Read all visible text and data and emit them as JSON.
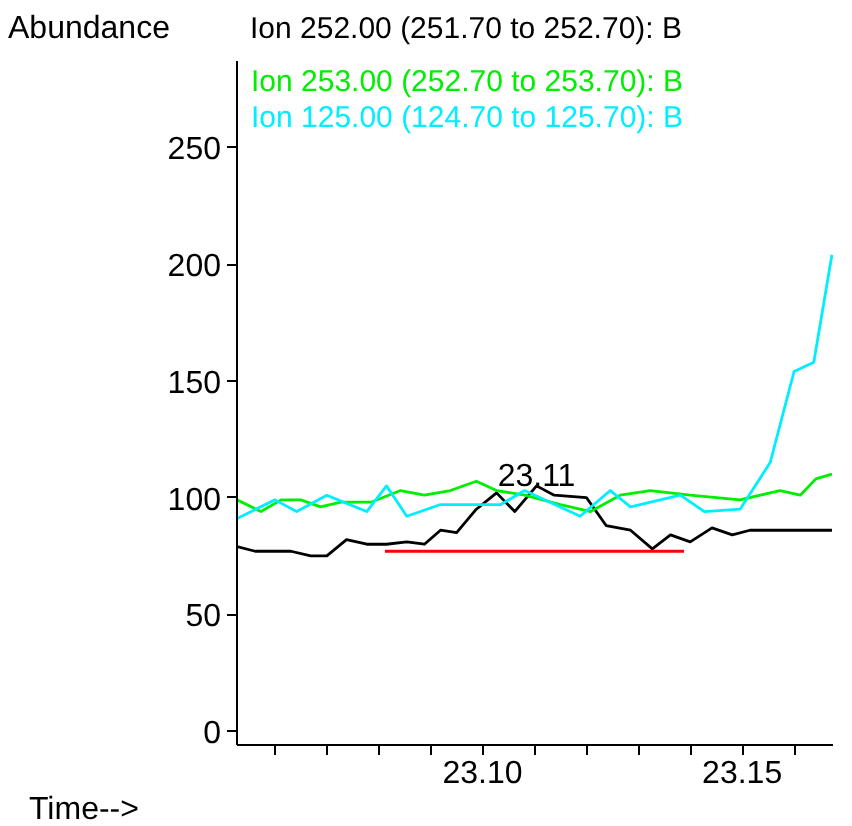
{
  "chart_data": {
    "type": "line",
    "xlabel": "Time-->",
    "ylabel": "Abundance",
    "grid": false,
    "marker": "none",
    "line_style": "solid",
    "xlim": [
      23.0527,
      23.1675
    ],
    "ylim": [
      -6,
      287
    ],
    "xticks": [
      {
        "value": 23.06,
        "label": null
      },
      {
        "value": 23.07,
        "label": null
      },
      {
        "value": 23.08,
        "label": null
      },
      {
        "value": 23.09,
        "label": null
      },
      {
        "value": 23.1,
        "label": "23.10"
      },
      {
        "value": 23.11,
        "label": null
      },
      {
        "value": 23.12,
        "label": null
      },
      {
        "value": 23.13,
        "label": null
      },
      {
        "value": 23.14,
        "label": null
      },
      {
        "value": 23.15,
        "label": "23.15"
      },
      {
        "value": 23.16,
        "label": null
      }
    ],
    "yticks": [
      0,
      50,
      100,
      150,
      200,
      250
    ],
    "annotations": [
      {
        "text": "23.11",
        "x": 23.1104,
        "y": 105
      }
    ],
    "series": [
      {
        "name": "Ion 252.00 (251.70 to 252.70): B",
        "color": "#000000",
        "x": [
          23.0527,
          23.0562,
          23.0631,
          23.0669,
          23.07,
          23.0738,
          23.0777,
          23.0815,
          23.0854,
          23.0888,
          23.0919,
          23.095,
          23.0988,
          23.1027,
          23.1062,
          23.1104,
          23.1138,
          23.12,
          23.1238,
          23.1285,
          23.1327,
          23.1362,
          23.14,
          23.1442,
          23.1481,
          23.1515,
          23.1554,
          23.1673
        ],
        "values": [
          79,
          77,
          77,
          75,
          75,
          82,
          80,
          80,
          81,
          80,
          86,
          85,
          95,
          102,
          94,
          105,
          101,
          100,
          88,
          86,
          78,
          84,
          81,
          87,
          84,
          86,
          86,
          86
        ]
      },
      {
        "name": "Ion 253.00 (252.70 to 253.70): B",
        "color": "#00ee00",
        "x": [
          23.0527,
          23.0573,
          23.0612,
          23.065,
          23.0688,
          23.0727,
          23.0785,
          23.0842,
          23.0888,
          23.0938,
          23.0988,
          23.1027,
          23.1081,
          23.115,
          23.1208,
          23.1265,
          23.1323,
          23.14,
          23.1496,
          23.1573,
          23.1612,
          23.1642,
          23.1673
        ],
        "values": [
          99,
          94,
          99,
          99,
          96,
          98,
          98,
          103,
          101,
          103,
          107,
          103,
          101,
          97,
          94,
          101,
          103,
          101,
          99,
          103,
          101,
          108,
          110
        ]
      },
      {
        "name": "Ion 125.00 (124.70 to 125.70): B",
        "color": "#00eeff",
        "x": [
          23.0527,
          23.06,
          23.0642,
          23.07,
          23.0777,
          23.0815,
          23.0854,
          23.0919,
          23.1035,
          23.1081,
          23.1188,
          23.1246,
          23.1285,
          23.1381,
          23.1427,
          23.1496,
          23.1554,
          23.16,
          23.1638,
          23.1673
        ],
        "values": [
          91,
          99,
          94,
          101,
          94,
          105,
          92,
          97,
          97,
          103,
          92,
          103,
          96,
          101,
          94,
          95,
          115,
          154,
          158,
          204
        ]
      },
      {
        "color": "#ff0000",
        "x": [
          23.0812,
          23.1388
        ],
        "values": [
          77,
          77
        ]
      }
    ]
  }
}
